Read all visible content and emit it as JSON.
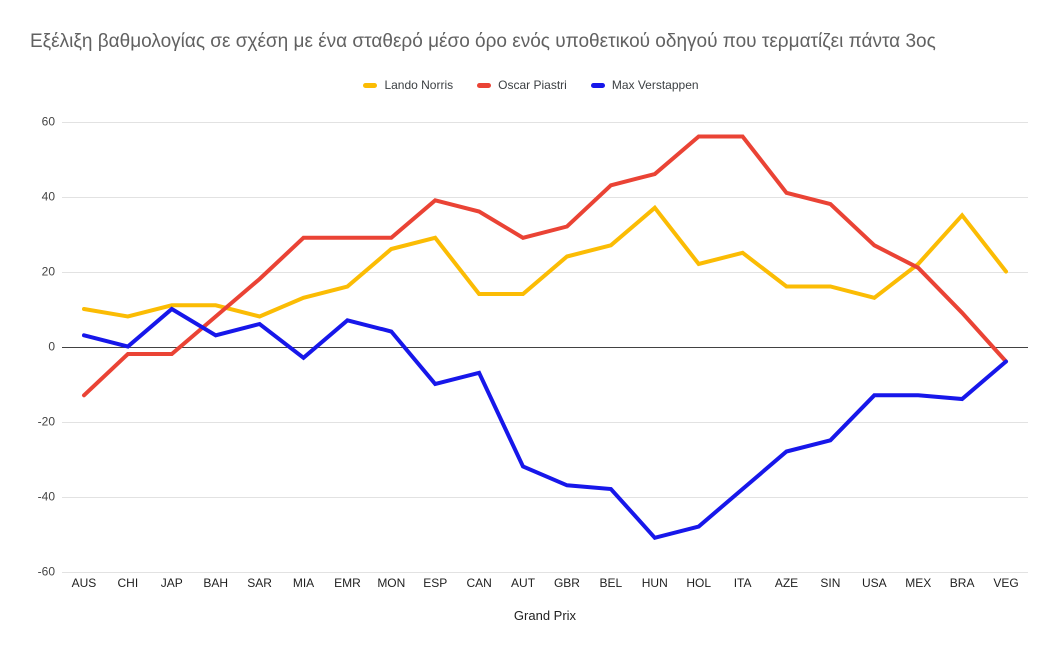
{
  "chart_data": {
    "type": "line",
    "title": "Εξέλιξη βαθμολογίας σε σχέση με ένα σταθερό μέσο όρο ενός υποθετικού οδηγού που τερματίζει πάντα 3ος",
    "x_title": "Grand Prix",
    "categories": [
      "AUS",
      "CHI",
      "JAP",
      "BAH",
      "SAR",
      "MIA",
      "EMR",
      "MON",
      "ESP",
      "CAN",
      "AUT",
      "GBR",
      "BEL",
      "HUN",
      "HOL",
      "ITA",
      "AZE",
      "SIN",
      "USA",
      "MEX",
      "BRA",
      "VEG"
    ],
    "series": [
      {
        "name": "Lando Norris",
        "color": "#FBBC04",
        "values": [
          10,
          8,
          11,
          11,
          8,
          13,
          16,
          26,
          29,
          14,
          14,
          24,
          27,
          37,
          22,
          25,
          16,
          16,
          13,
          22,
          35,
          20
        ]
      },
      {
        "name": "Oscar Piastri",
        "color": "#EA4335",
        "values": [
          -13,
          -2,
          -2,
          8,
          18,
          29,
          29,
          29,
          39,
          36,
          29,
          32,
          43,
          46,
          56,
          56,
          41,
          38,
          27,
          21,
          9,
          -4
        ]
      },
      {
        "name": "Max Verstappen",
        "color": "#1717EA",
        "values": [
          3,
          0,
          10,
          3,
          6,
          -3,
          7,
          4,
          -10,
          -7,
          -32,
          -37,
          -38,
          -51,
          -48,
          -38,
          -28,
          -25,
          -13,
          -13,
          -14,
          -4
        ]
      }
    ],
    "y_ticks": [
      -60,
      -40,
      -20,
      0,
      20,
      40,
      60
    ],
    "ylim": [
      -60,
      60
    ],
    "grid": true,
    "legend_position": "top",
    "colors": {
      "gridline": "#e2e2e2",
      "zero_line": "#424242",
      "tick_label": "#444444",
      "axis_label": "#1f1f1f",
      "title": "#616161"
    }
  }
}
